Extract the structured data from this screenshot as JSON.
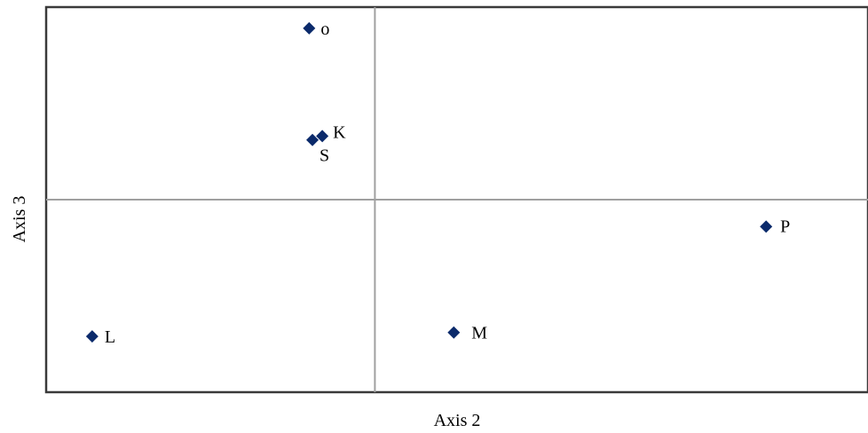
{
  "chart_data": {
    "type": "scatter",
    "xlabel": "Axis 2",
    "ylabel": "Axis 3",
    "xlim": [
      -1,
      1.5
    ],
    "ylim": [
      -1,
      1
    ],
    "grid": false,
    "reference_lines": {
      "x": 0,
      "y": 0
    },
    "marker": "diamond",
    "marker_color": "#0b2a6b",
    "points": [
      {
        "label": "o",
        "x": -0.2,
        "y": 0.89
      },
      {
        "label": "K",
        "x": -0.16,
        "y": 0.33
      },
      {
        "label": "S",
        "x": -0.19,
        "y": 0.31
      },
      {
        "label": "P",
        "x": 1.19,
        "y": -0.14
      },
      {
        "label": "L",
        "x": -0.86,
        "y": -0.71
      },
      {
        "label": "M",
        "x": 0.24,
        "y": -0.69
      }
    ]
  }
}
